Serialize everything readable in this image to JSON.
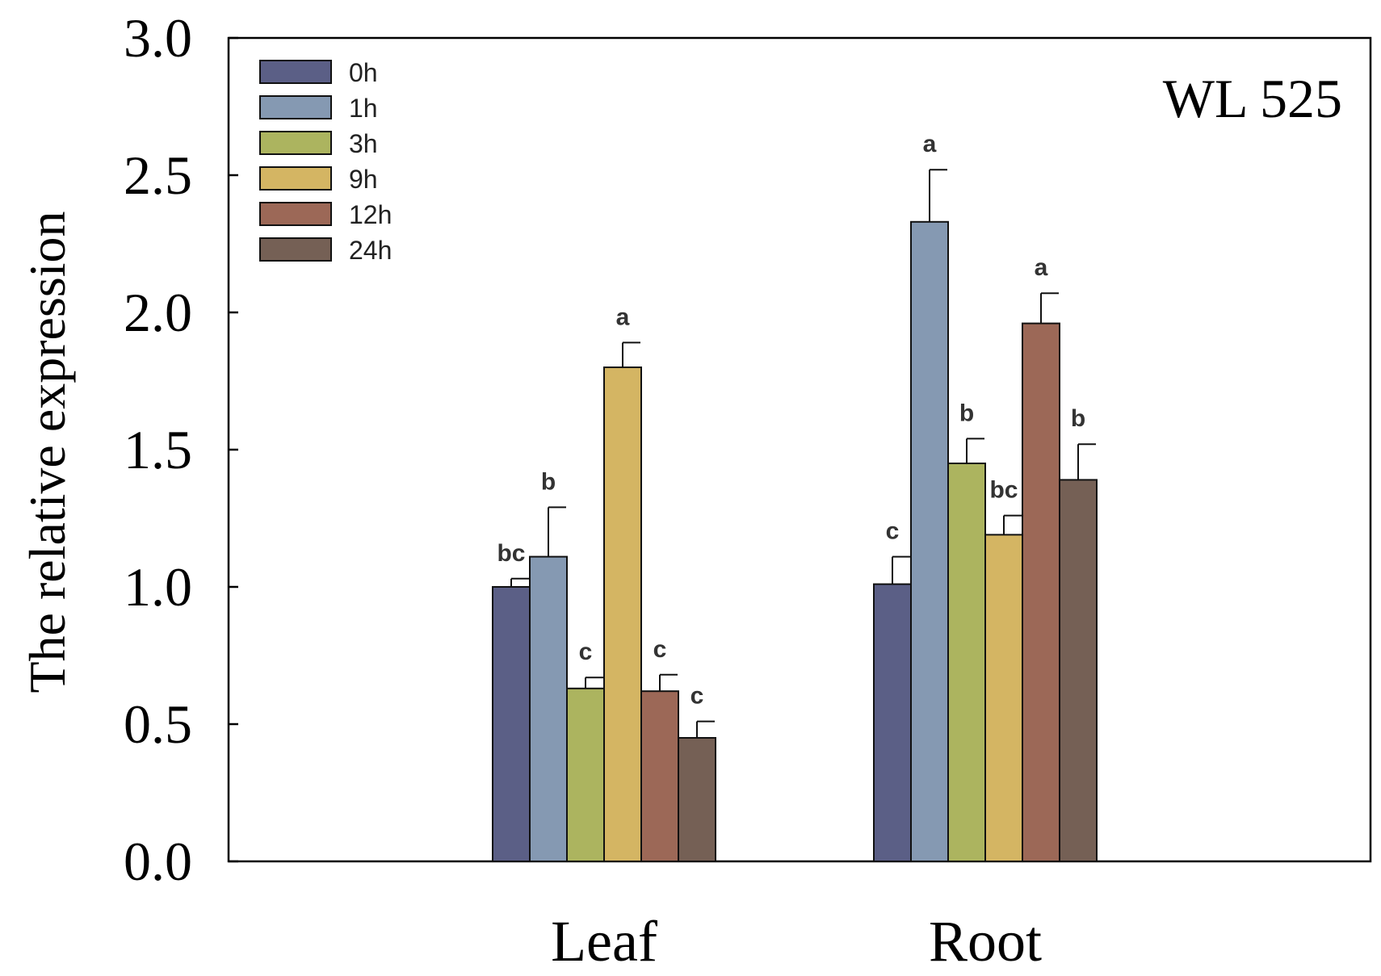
{
  "chart_data": {
    "type": "bar",
    "title": "WL 525",
    "xlabel": "",
    "ylabel": "The relative expression",
    "ylim": [
      0,
      3.0
    ],
    "yticks": [
      "0.0",
      "0.5",
      "1.0",
      "1.5",
      "2.0",
      "2.5",
      "3.0"
    ],
    "ytick_values": [
      0,
      0.5,
      1.0,
      1.5,
      2.0,
      2.5,
      3.0
    ],
    "categories": [
      "Leaf",
      "Root"
    ],
    "legend_position": "top-left",
    "series": [
      {
        "name": "0h",
        "color": "#5b5f86",
        "values": [
          1.0,
          1.01
        ],
        "errors": [
          0.03,
          0.1
        ],
        "letters": [
          "bc",
          "c"
        ]
      },
      {
        "name": "1h",
        "color": "#8599b2",
        "values": [
          1.11,
          2.33
        ],
        "errors": [
          0.18,
          0.19
        ],
        "letters": [
          "b",
          "a"
        ]
      },
      {
        "name": "3h",
        "color": "#acb45f",
        "values": [
          0.63,
          1.45
        ],
        "errors": [
          0.04,
          0.09
        ],
        "letters": [
          "c",
          "b"
        ]
      },
      {
        "name": "9h",
        "color": "#d4b563",
        "values": [
          1.8,
          1.19
        ],
        "errors": [
          0.09,
          0.07
        ],
        "letters": [
          "a",
          "bc"
        ]
      },
      {
        "name": "12h",
        "color": "#9c6857",
        "values": [
          0.62,
          1.96
        ],
        "errors": [
          0.06,
          0.11
        ],
        "letters": [
          "c",
          "a"
        ]
      },
      {
        "name": "24h",
        "color": "#756055",
        "values": [
          0.45,
          1.39
        ],
        "errors": [
          0.06,
          0.13
        ],
        "letters": [
          "c",
          "b"
        ]
      }
    ]
  }
}
